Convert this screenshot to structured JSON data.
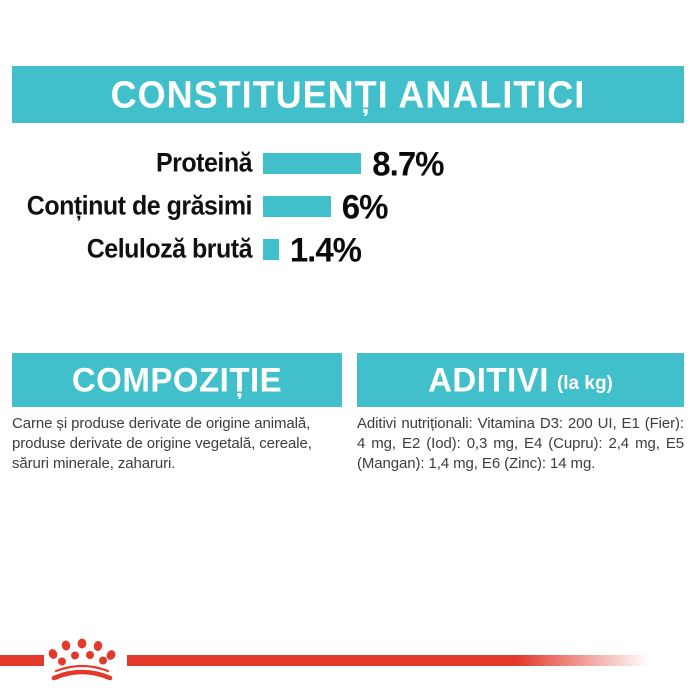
{
  "colors": {
    "teal": "#41C0CB",
    "red": "#E2392B",
    "heading_text": "#ffffff",
    "chart_text": "#0a0a0a",
    "body_text": "#3d3d3c",
    "background": "#ffffff"
  },
  "header": {
    "title": "CONSTITUENȚI ANALITICI"
  },
  "chart_data": {
    "type": "bar",
    "orientation": "horizontal",
    "categories": [
      "Proteină",
      "Conținut de grăsimi",
      "Celuloză brută"
    ],
    "values": [
      8.7,
      6,
      1.4
    ],
    "value_labels": [
      "8.7%",
      "6%",
      "1.4%"
    ],
    "unit": "%",
    "bar_color": "#41C0CB",
    "title": "CONSTITUENȚI ANALITICI",
    "xlabel": "",
    "ylabel": "",
    "xlim": [
      0,
      10
    ],
    "grid": false,
    "legend": false
  },
  "sections": {
    "composition": {
      "title": "COMPOZIȚIE",
      "body": "Carne și produse derivate de origine animală, produse derivate de origine vegetală, cereale, săruri minerale, zaharuri."
    },
    "additives": {
      "title": "ADITIVI",
      "subtitle": "(la kg)",
      "body": "Aditivi nutriționali: Vitamina D3: 200 UI, E1 (Fier): 4 mg, E2 (Iod): 0,3 mg, E4 (Cupru): 2,4 mg, E5 (Mangan): 1,4 mg, E6 (Zinc): 14 mg."
    }
  },
  "footer": {
    "logo": "royal-canin-crown-logo"
  }
}
